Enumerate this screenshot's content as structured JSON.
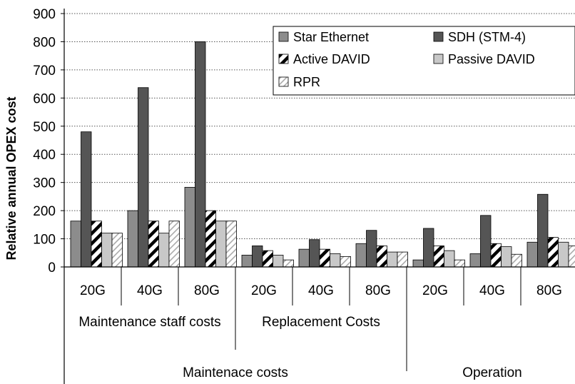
{
  "chart_data": {
    "type": "bar",
    "ylabel": "Relative annual OPEX cost",
    "ylim": [
      0,
      900
    ],
    "yticks": [
      0,
      100,
      200,
      300,
      400,
      500,
      600,
      700,
      800,
      900
    ],
    "grid": "horizontal dotted",
    "legend_position": "top-right",
    "categories": [
      "20G",
      "40G",
      "80G",
      "20G",
      "40G",
      "80G",
      "20G",
      "40G",
      "80G"
    ],
    "category_groups": [
      {
        "label": "Maintenance staff costs",
        "categories": [
          0,
          1,
          2
        ]
      },
      {
        "label": "Replacement Costs",
        "categories": [
          3,
          4,
          5
        ]
      },
      {
        "label": "",
        "categories": [
          6,
          7,
          8
        ]
      }
    ],
    "top_groups": [
      {
        "label": "Maintenace costs",
        "categories": [
          0,
          1,
          2,
          3,
          4,
          5
        ]
      },
      {
        "label": "Operation",
        "categories": [
          6,
          7,
          8
        ]
      }
    ],
    "series": [
      {
        "name": "Star Ethernet",
        "color": "#8c8c8c",
        "pattern": "solid",
        "values": [
          163,
          200,
          283,
          42,
          63,
          83,
          25,
          47,
          88
        ]
      },
      {
        "name": "SDH (STM-4)",
        "color": "#555555",
        "pattern": "solid",
        "values": [
          480,
          637,
          800,
          75,
          97,
          130,
          137,
          183,
          258
        ]
      },
      {
        "name": "Active DAVID",
        "color": "#000000",
        "pattern": "diagonal-thick",
        "values": [
          163,
          163,
          200,
          58,
          63,
          75,
          75,
          83,
          105
        ]
      },
      {
        "name": "Passive DAVID",
        "color": "#c8c8c8",
        "pattern": "solid",
        "values": [
          120,
          120,
          163,
          42,
          47,
          53,
          58,
          72,
          88
        ]
      },
      {
        "name": "RPR",
        "color": "#b4b4b4",
        "pattern": "diagonal-thin",
        "values": [
          120,
          163,
          163,
          25,
          37,
          53,
          25,
          45,
          75
        ]
      }
    ]
  }
}
